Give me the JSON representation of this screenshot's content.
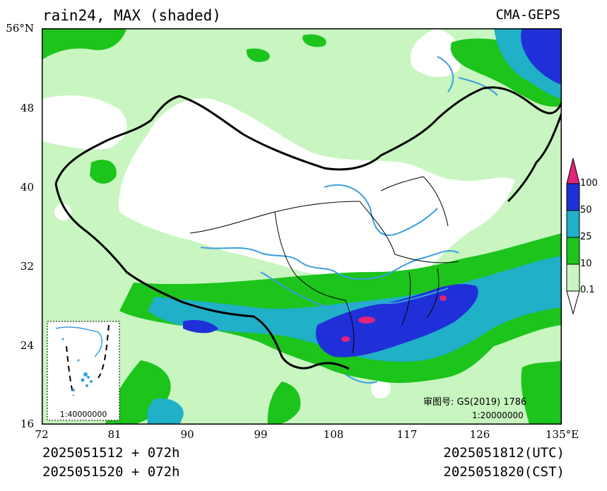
{
  "header": {
    "title": "rain24, MAX (shaded)",
    "source": "CMA-GEPS"
  },
  "axes": {
    "lat_ticks": [
      "56°N",
      "48",
      "40",
      "32",
      "24",
      "16"
    ],
    "lon_ticks": [
      "72",
      "81",
      "90",
      "99",
      "108",
      "117",
      "126",
      "135°E"
    ]
  },
  "legend": {
    "labels": [
      "100",
      "50",
      "25",
      "10",
      "0.1"
    ],
    "colors": [
      "#e0257a",
      "#2030d8",
      "#20b0c8",
      "#1cc41c",
      "#c8f5c0"
    ]
  },
  "inset": {
    "scale": "1:40000000"
  },
  "map_notes": {
    "review_no": "审图号: GS(2019) 1786",
    "scale": "1:20000000"
  },
  "footer": {
    "init_utc": "2025051512 + 072h",
    "init_cst": "2025051520 + 072h",
    "valid_utc": "2025051812(UTC)",
    "valid_cst": "2025051820(CST)"
  }
}
